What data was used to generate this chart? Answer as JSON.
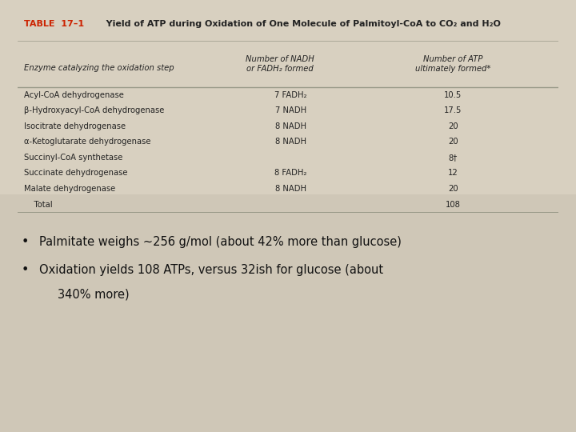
{
  "title_label": "TABLE  17–1",
  "title_text": "   Yield of ATP during Oxidation of One Molecule of Palmitoyl-CoA to CO₂ and H₂O",
  "col_headers_left": "Enzyme catalyzing the oxidation step",
  "col_header_mid": "Number of NADH\nor FADH₂ formed",
  "col_header_right": "Number of ATP\nultimately formed*",
  "rows": [
    [
      "Acyl-CoA dehydrogenase",
      "7 FADH₂",
      "10.5"
    ],
    [
      "β-Hydroxyacyl-CoA dehydrogenase",
      "7 NADH",
      "17.5"
    ],
    [
      "Isocitrate dehydrogenase",
      "8 NADH",
      "20"
    ],
    [
      "α-Ketoglutarate dehydrogenase",
      "8 NADH",
      "20"
    ],
    [
      "Succinyl-CoA synthetase",
      "",
      "8†"
    ],
    [
      "Succinate dehydrogenase",
      "8 FADH₂",
      "12"
    ],
    [
      "Malate dehydrogenase",
      "8 NADH",
      "20"
    ],
    [
      "    Total",
      "",
      "108"
    ]
  ],
  "bullet1": "Palmitate weighs ~256 g/mol (about 42% more than glucose)",
  "bullet2_line1": "Oxidation yields 108 ATPs, versus 32ish for glucose (about",
  "bullet2_line2": "340% more)",
  "table_bg": "#f5edca",
  "title_color": "#cc2200",
  "text_color": "#222222",
  "bullet_color": "#111111",
  "bg_color": "#d8d0c0",
  "line_color": "#999988",
  "title_fontsize": 8.0,
  "header_fontsize": 7.2,
  "row_fontsize": 7.2,
  "bullet_fontsize": 10.5
}
